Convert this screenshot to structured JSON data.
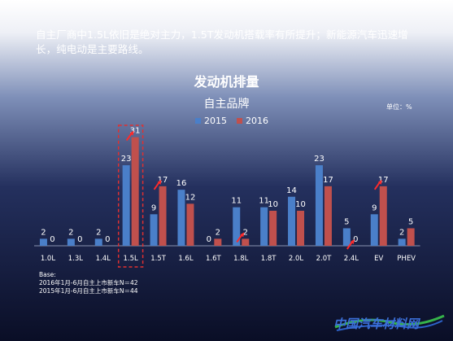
{
  "headline": "自主厂商中1.5L依旧是绝对主力，1.5T发动机搭载率有所提升；新能源汽车迅速增长，纯电动是主要路线。",
  "chart_data": {
    "type": "bar",
    "title": "发动机排量",
    "subtitle": "自主品牌",
    "unit": "单位：%",
    "categories": [
      "1.0L",
      "1.3L",
      "1.4L",
      "1.5L",
      "1.5T",
      "1.6L",
      "1.6T",
      "1.8L",
      "1.8T",
      "2.0L",
      "2.0T",
      "2.4L",
      "EV",
      "PHEV"
    ],
    "series": [
      {
        "name": "2015",
        "color": "#4a7fc9",
        "values": [
          2,
          2,
          2,
          23,
          9,
          16,
          0,
          11,
          11,
          14,
          23,
          5,
          9,
          2
        ]
      },
      {
        "name": "2016",
        "color": "#c0504d",
        "values": [
          0,
          0,
          0,
          31,
          17,
          12,
          2,
          2,
          10,
          10,
          17,
          0,
          17,
          5
        ]
      }
    ],
    "ylim": [
      0,
      33
    ],
    "legend": "top",
    "highlight_category": "1.5L",
    "arrows": [
      "1.5L",
      "1.5T",
      "1.8L",
      "2.4L",
      "EV"
    ]
  },
  "base_note": {
    "label": "Base:",
    "line1": "2016年1月-6月自主上市新车N＝42",
    "line2": "2015年1月-6月自主上市新车N＝44"
  },
  "watermark": "中国汽车材料网"
}
